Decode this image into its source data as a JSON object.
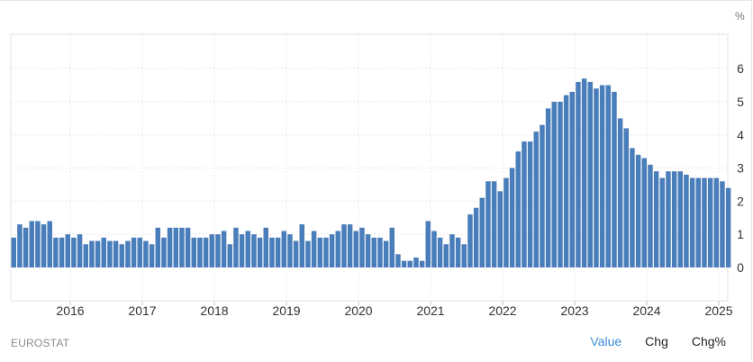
{
  "unit_label": "%",
  "source_label": "EUROSTAT",
  "tabs": [
    {
      "label": "Value",
      "active": true
    },
    {
      "label": "Chg",
      "active": false
    },
    {
      "label": "Chg%",
      "active": false
    }
  ],
  "colors": {
    "bar": "#4a7ebb",
    "grid": "#e8e8e8",
    "active_tab": "#3a8fd9"
  },
  "chart_data": {
    "type": "bar",
    "ylim": [
      0,
      6.5
    ],
    "y_ticks": [
      "0",
      "1",
      "2",
      "3",
      "4",
      "5",
      "6"
    ],
    "x_ticks": [
      "2016",
      "2017",
      "2018",
      "2019",
      "2020",
      "2021",
      "2022",
      "2023",
      "2024",
      "2025"
    ],
    "x_start": "2015-06",
    "grid": true,
    "values": [
      0.9,
      1.3,
      1.2,
      1.4,
      1.4,
      1.3,
      1.4,
      0.9,
      0.9,
      1.0,
      0.9,
      1.0,
      0.7,
      0.8,
      0.8,
      0.9,
      0.8,
      0.8,
      0.7,
      0.8,
      0.9,
      0.9,
      0.8,
      0.7,
      1.2,
      0.9,
      1.2,
      1.2,
      1.2,
      1.2,
      0.9,
      0.9,
      0.9,
      1.0,
      1.0,
      1.1,
      0.7,
      1.2,
      1.0,
      1.1,
      1.0,
      0.9,
      1.2,
      0.9,
      0.9,
      1.1,
      1.0,
      0.8,
      1.3,
      0.8,
      1.1,
      0.9,
      0.9,
      1.0,
      1.1,
      1.3,
      1.3,
      1.1,
      1.2,
      1.0,
      0.9,
      0.9,
      0.8,
      1.2,
      0.4,
      0.2,
      0.2,
      0.3,
      0.2,
      1.4,
      1.1,
      0.9,
      0.7,
      1.0,
      0.9,
      0.7,
      1.6,
      1.8,
      2.1,
      2.6,
      2.6,
      2.3,
      2.7,
      3.0,
      3.5,
      3.8,
      3.8,
      4.1,
      4.3,
      4.8,
      5.0,
      5.0,
      5.2,
      5.3,
      5.6,
      5.7,
      5.6,
      5.4,
      5.5,
      5.5,
      5.3,
      4.5,
      4.2,
      3.6,
      3.4,
      3.3,
      3.1,
      2.9,
      2.7,
      2.9,
      2.9,
      2.9,
      2.8,
      2.7,
      2.7,
      2.7,
      2.7,
      2.7,
      2.6,
      2.4
    ]
  }
}
